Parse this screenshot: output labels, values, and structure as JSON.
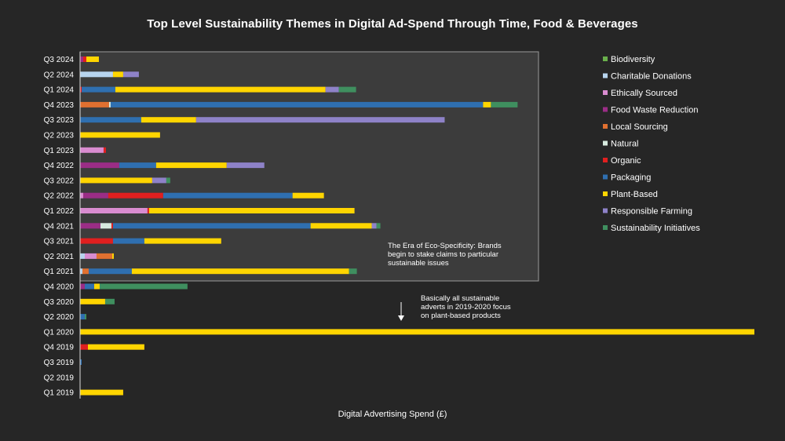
{
  "chart_data": {
    "type": "bar",
    "orientation": "horizontal",
    "stacked": true,
    "title": "Top Level Sustainability Themes in Digital Ad-Spend Through Time, Food & Beverages",
    "xlabel": "Digital Advertising Spend (£)",
    "ylabel": "",
    "xlim": [
      0,
      860
    ],
    "grid": false,
    "legend_position": "right",
    "categories": [
      "Q3 2024",
      "Q2 2024",
      "Q1 2024",
      "Q4 2023",
      "Q3 2023",
      "Q2 2023",
      "Q1 2023",
      "Q4 2022",
      "Q3 2022",
      "Q2 2022",
      "Q1 2022",
      "Q4 2021",
      "Q3 2021",
      "Q2 2021",
      "Q1 2021",
      "Q4 2020",
      "Q3 2020",
      "Q2 2020",
      "Q1 2020",
      "Q4 2019",
      "Q3 2019",
      "Q2 2019",
      "Q1 2019"
    ],
    "series": [
      {
        "name": "Biodiversity",
        "color": "#6ab04c",
        "values": [
          0,
          0,
          0,
          0,
          0,
          0,
          0,
          0,
          0,
          0,
          0,
          0,
          0,
          0,
          0,
          0,
          0,
          0,
          0,
          0,
          0,
          0,
          0
        ]
      },
      {
        "name": "Charitable Donations",
        "color": "#b7d4ee",
        "values": [
          0,
          42,
          0,
          0,
          0,
          0,
          0,
          0,
          0,
          0,
          0,
          0,
          0,
          6,
          3,
          0,
          0,
          0,
          0,
          0,
          0,
          0,
          0
        ]
      },
      {
        "name": "Ethically Sourced",
        "color": "#d98cd0",
        "values": [
          0,
          0,
          0,
          0,
          0,
          0,
          30,
          0,
          0,
          4,
          86,
          0,
          0,
          15,
          0,
          0,
          0,
          0,
          0,
          0,
          0,
          0,
          0
        ]
      },
      {
        "name": "Food Waste Reduction",
        "color": "#9b2d86",
        "values": [
          4,
          0,
          0,
          0,
          0,
          0,
          0,
          50,
          0,
          32,
          0,
          26,
          0,
          0,
          0,
          6,
          0,
          0,
          0,
          0,
          0,
          0,
          0
        ]
      },
      {
        "name": "Local Sourcing",
        "color": "#e07030",
        "values": [
          0,
          0,
          0,
          37,
          0,
          0,
          0,
          0,
          0,
          0,
          0,
          0,
          0,
          20,
          8,
          0,
          0,
          0,
          0,
          0,
          0,
          0,
          0
        ]
      },
      {
        "name": "Natural",
        "color": "#d8eadf",
        "values": [
          0,
          0,
          0,
          2,
          0,
          0,
          0,
          0,
          0,
          0,
          0,
          14,
          0,
          0,
          0,
          0,
          0,
          0,
          0,
          0,
          0,
          0,
          0
        ]
      },
      {
        "name": "Organic",
        "color": "#e01f1f",
        "values": [
          4,
          0,
          2,
          0,
          0,
          0,
          3,
          0,
          0,
          70,
          2,
          2,
          42,
          0,
          0,
          0,
          0,
          0,
          0,
          10,
          0,
          0,
          0
        ]
      },
      {
        "name": "Packaging",
        "color": "#2f6fb0",
        "values": [
          0,
          0,
          43,
          475,
          78,
          0,
          0,
          47,
          0,
          165,
          0,
          252,
          40,
          0,
          55,
          12,
          0,
          6,
          0,
          0,
          2,
          0,
          0
        ]
      },
      {
        "name": "Plant-Based",
        "color": "#ffd500",
        "values": [
          16,
          13,
          268,
          10,
          70,
          102,
          0,
          90,
          92,
          40,
          262,
          78,
          98,
          2,
          277,
          7,
          32,
          0,
          860,
          72,
          0,
          0,
          55
        ]
      },
      {
        "name": "Responsible Farming",
        "color": "#8e82c8",
        "values": [
          0,
          20,
          17,
          0,
          317,
          0,
          0,
          48,
          18,
          0,
          0,
          6,
          0,
          0,
          0,
          0,
          0,
          0,
          0,
          0,
          0,
          0,
          0
        ]
      },
      {
        "name": "Sustainability Initiatives",
        "color": "#3f8f5f",
        "values": [
          0,
          0,
          22,
          34,
          0,
          0,
          0,
          0,
          5,
          0,
          0,
          5,
          0,
          0,
          10,
          112,
          12,
          2,
          0,
          0,
          0,
          0,
          0
        ]
      }
    ],
    "annotations": [
      {
        "text": "The Era of Eco-Specificity: Brands begin to stake claims to particular sustainable issues",
        "lines": [
          "The Era of Eco-Specificity: Brands",
          "begin to stake claims to particular",
          "sustainable issues"
        ]
      },
      {
        "text": "Basically all sustainable adverts in 2019-2020 focus on plant-based products",
        "lines": [
          "Basically all sustainable",
          "adverts in 2019-2020 focus",
          "on plant-based products"
        ]
      }
    ]
  }
}
